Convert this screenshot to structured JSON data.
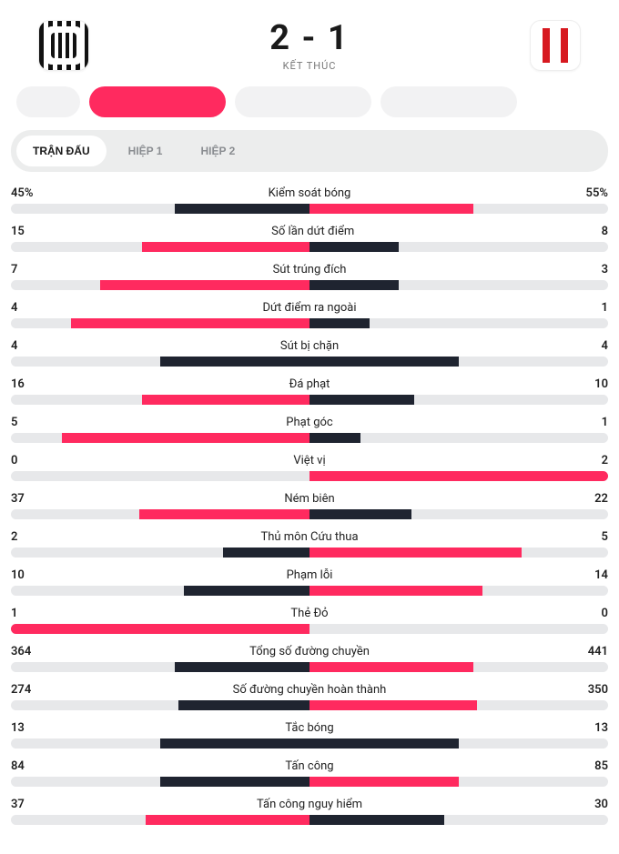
{
  "colors": {
    "home": "#1f2430",
    "away": "#ff2a5f",
    "track": "#e7e8ea",
    "tab_bg": "#eceded",
    "inactive_tab_text": "#8a8d91"
  },
  "header": {
    "home_score": 2,
    "away_score": 1,
    "score_display": "2 - 1",
    "status": "KẾT THÚC"
  },
  "tabs": [
    {
      "label": "TRẬN ĐẤU",
      "active": true
    },
    {
      "label": "HIỆP 1",
      "active": false
    },
    {
      "label": "HIỆP 2",
      "active": false
    }
  ],
  "stats": [
    {
      "label": "Kiểm soát bóng",
      "home": 45,
      "away": 55,
      "home_display": "45%",
      "away_display": "55%",
      "home_pct": 45,
      "away_pct": 55
    },
    {
      "label": "Số lần dứt điểm",
      "home": 15,
      "away": 8,
      "home_display": "15",
      "away_display": "8",
      "home_pct": 56,
      "away_pct": 30
    },
    {
      "label": "Sút trúng đích",
      "home": 7,
      "away": 3,
      "home_display": "7",
      "away_display": "3",
      "home_pct": 70,
      "away_pct": 30
    },
    {
      "label": "Dứt điểm ra ngoài",
      "home": 4,
      "away": 1,
      "home_display": "4",
      "away_display": "1",
      "home_pct": 80,
      "away_pct": 20
    },
    {
      "label": "Sút bị chặn",
      "home": 4,
      "away": 4,
      "home_display": "4",
      "away_display": "4",
      "home_pct": 50,
      "away_pct": 50
    },
    {
      "label": "Đá phạt",
      "home": 16,
      "away": 10,
      "home_display": "16",
      "away_display": "10",
      "home_pct": 56,
      "away_pct": 35
    },
    {
      "label": "Phạt góc",
      "home": 5,
      "away": 1,
      "home_display": "5",
      "away_display": "1",
      "home_pct": 83,
      "away_pct": 17
    },
    {
      "label": "Việt vị",
      "home": 0,
      "away": 2,
      "home_display": "0",
      "away_display": "2",
      "home_pct": 0,
      "away_pct": 100
    },
    {
      "label": "Ném biên",
      "home": 37,
      "away": 22,
      "home_display": "37",
      "away_display": "22",
      "home_pct": 57,
      "away_pct": 34
    },
    {
      "label": "Thủ môn Cứu thua",
      "home": 2,
      "away": 5,
      "home_display": "2",
      "away_display": "5",
      "home_pct": 29,
      "away_pct": 71
    },
    {
      "label": "Phạm lỗi",
      "home": 10,
      "away": 14,
      "home_display": "10",
      "away_display": "14",
      "home_pct": 42,
      "away_pct": 58
    },
    {
      "label": "Thẻ Đỏ",
      "home": 1,
      "away": 0,
      "home_display": "1",
      "away_display": "0",
      "home_pct": 100,
      "away_pct": 0
    },
    {
      "label": "Tổng số đường chuyền",
      "home": 364,
      "away": 441,
      "home_display": "364",
      "away_display": "441",
      "home_pct": 45,
      "away_pct": 55
    },
    {
      "label": "Số đường chuyền hoàn thành",
      "home": 274,
      "away": 350,
      "home_display": "274",
      "away_display": "350",
      "home_pct": 44,
      "away_pct": 56
    },
    {
      "label": "Tắc bóng",
      "home": 13,
      "away": 13,
      "home_display": "13",
      "away_display": "13",
      "home_pct": 50,
      "away_pct": 50
    },
    {
      "label": "Tấn công",
      "home": 84,
      "away": 85,
      "home_display": "84",
      "away_display": "85",
      "home_pct": 50,
      "away_pct": 50
    },
    {
      "label": "Tấn công nguy hiểm",
      "home": 37,
      "away": 30,
      "home_display": "37",
      "away_display": "30",
      "home_pct": 55,
      "away_pct": 45
    }
  ]
}
